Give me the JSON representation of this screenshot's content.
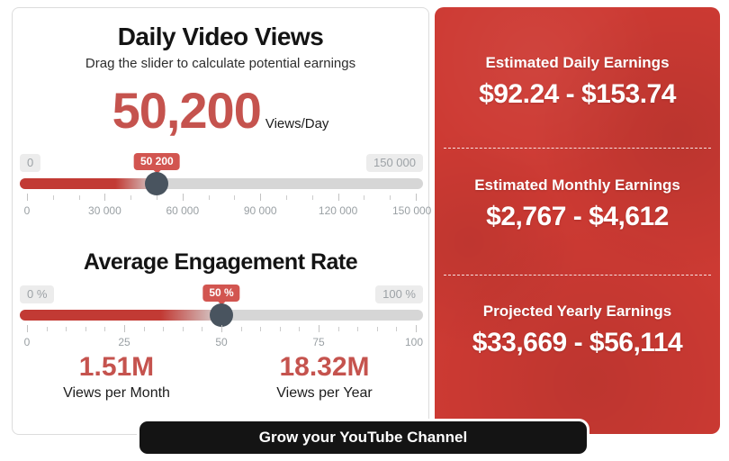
{
  "calculator": {
    "title": "Daily Video Views",
    "subtitle": "Drag the slider to calculate potential earnings",
    "views_value": "50,200",
    "views_unit": "Views/Day",
    "views_slider": {
      "min_label": "0",
      "max_label": "150 000",
      "tooltip": "50 200",
      "value": 50200,
      "min": 0,
      "max": 150000,
      "tick_labels": [
        "0",
        "30 000",
        "60 000",
        "90 000",
        "120 000",
        "150 000"
      ]
    },
    "engagement_title": "Average Engagement Rate",
    "engagement_slider": {
      "min_label": "0 %",
      "max_label": "100 %",
      "tooltip": "50 %",
      "value": 50,
      "min": 0,
      "max": 100,
      "tick_labels": [
        "0",
        "25",
        "50",
        "75",
        "100"
      ]
    },
    "stats": [
      {
        "value": "1.51M",
        "label": "Views per Month"
      },
      {
        "value": "18.32M",
        "label": "Views per Year"
      }
    ]
  },
  "earnings": {
    "sections": [
      {
        "label": "Estimated Daily Earnings",
        "range": "$92.24 - $153.74"
      },
      {
        "label": "Estimated Monthly Earnings",
        "range": "$2,767 - $4,612"
      },
      {
        "label": "Projected Yearly Earnings",
        "range": "$33,669 - $56,114"
      }
    ]
  },
  "cta": {
    "label": "Grow your YouTube Channel"
  },
  "colors": {
    "accent_red": "#c5534e",
    "panel_red": "#cd3a33",
    "slider_fill_red": "#c23a34",
    "tooltip_red": "#d25550",
    "handle_gray": "#49545f",
    "cta_black": "#141414"
  }
}
